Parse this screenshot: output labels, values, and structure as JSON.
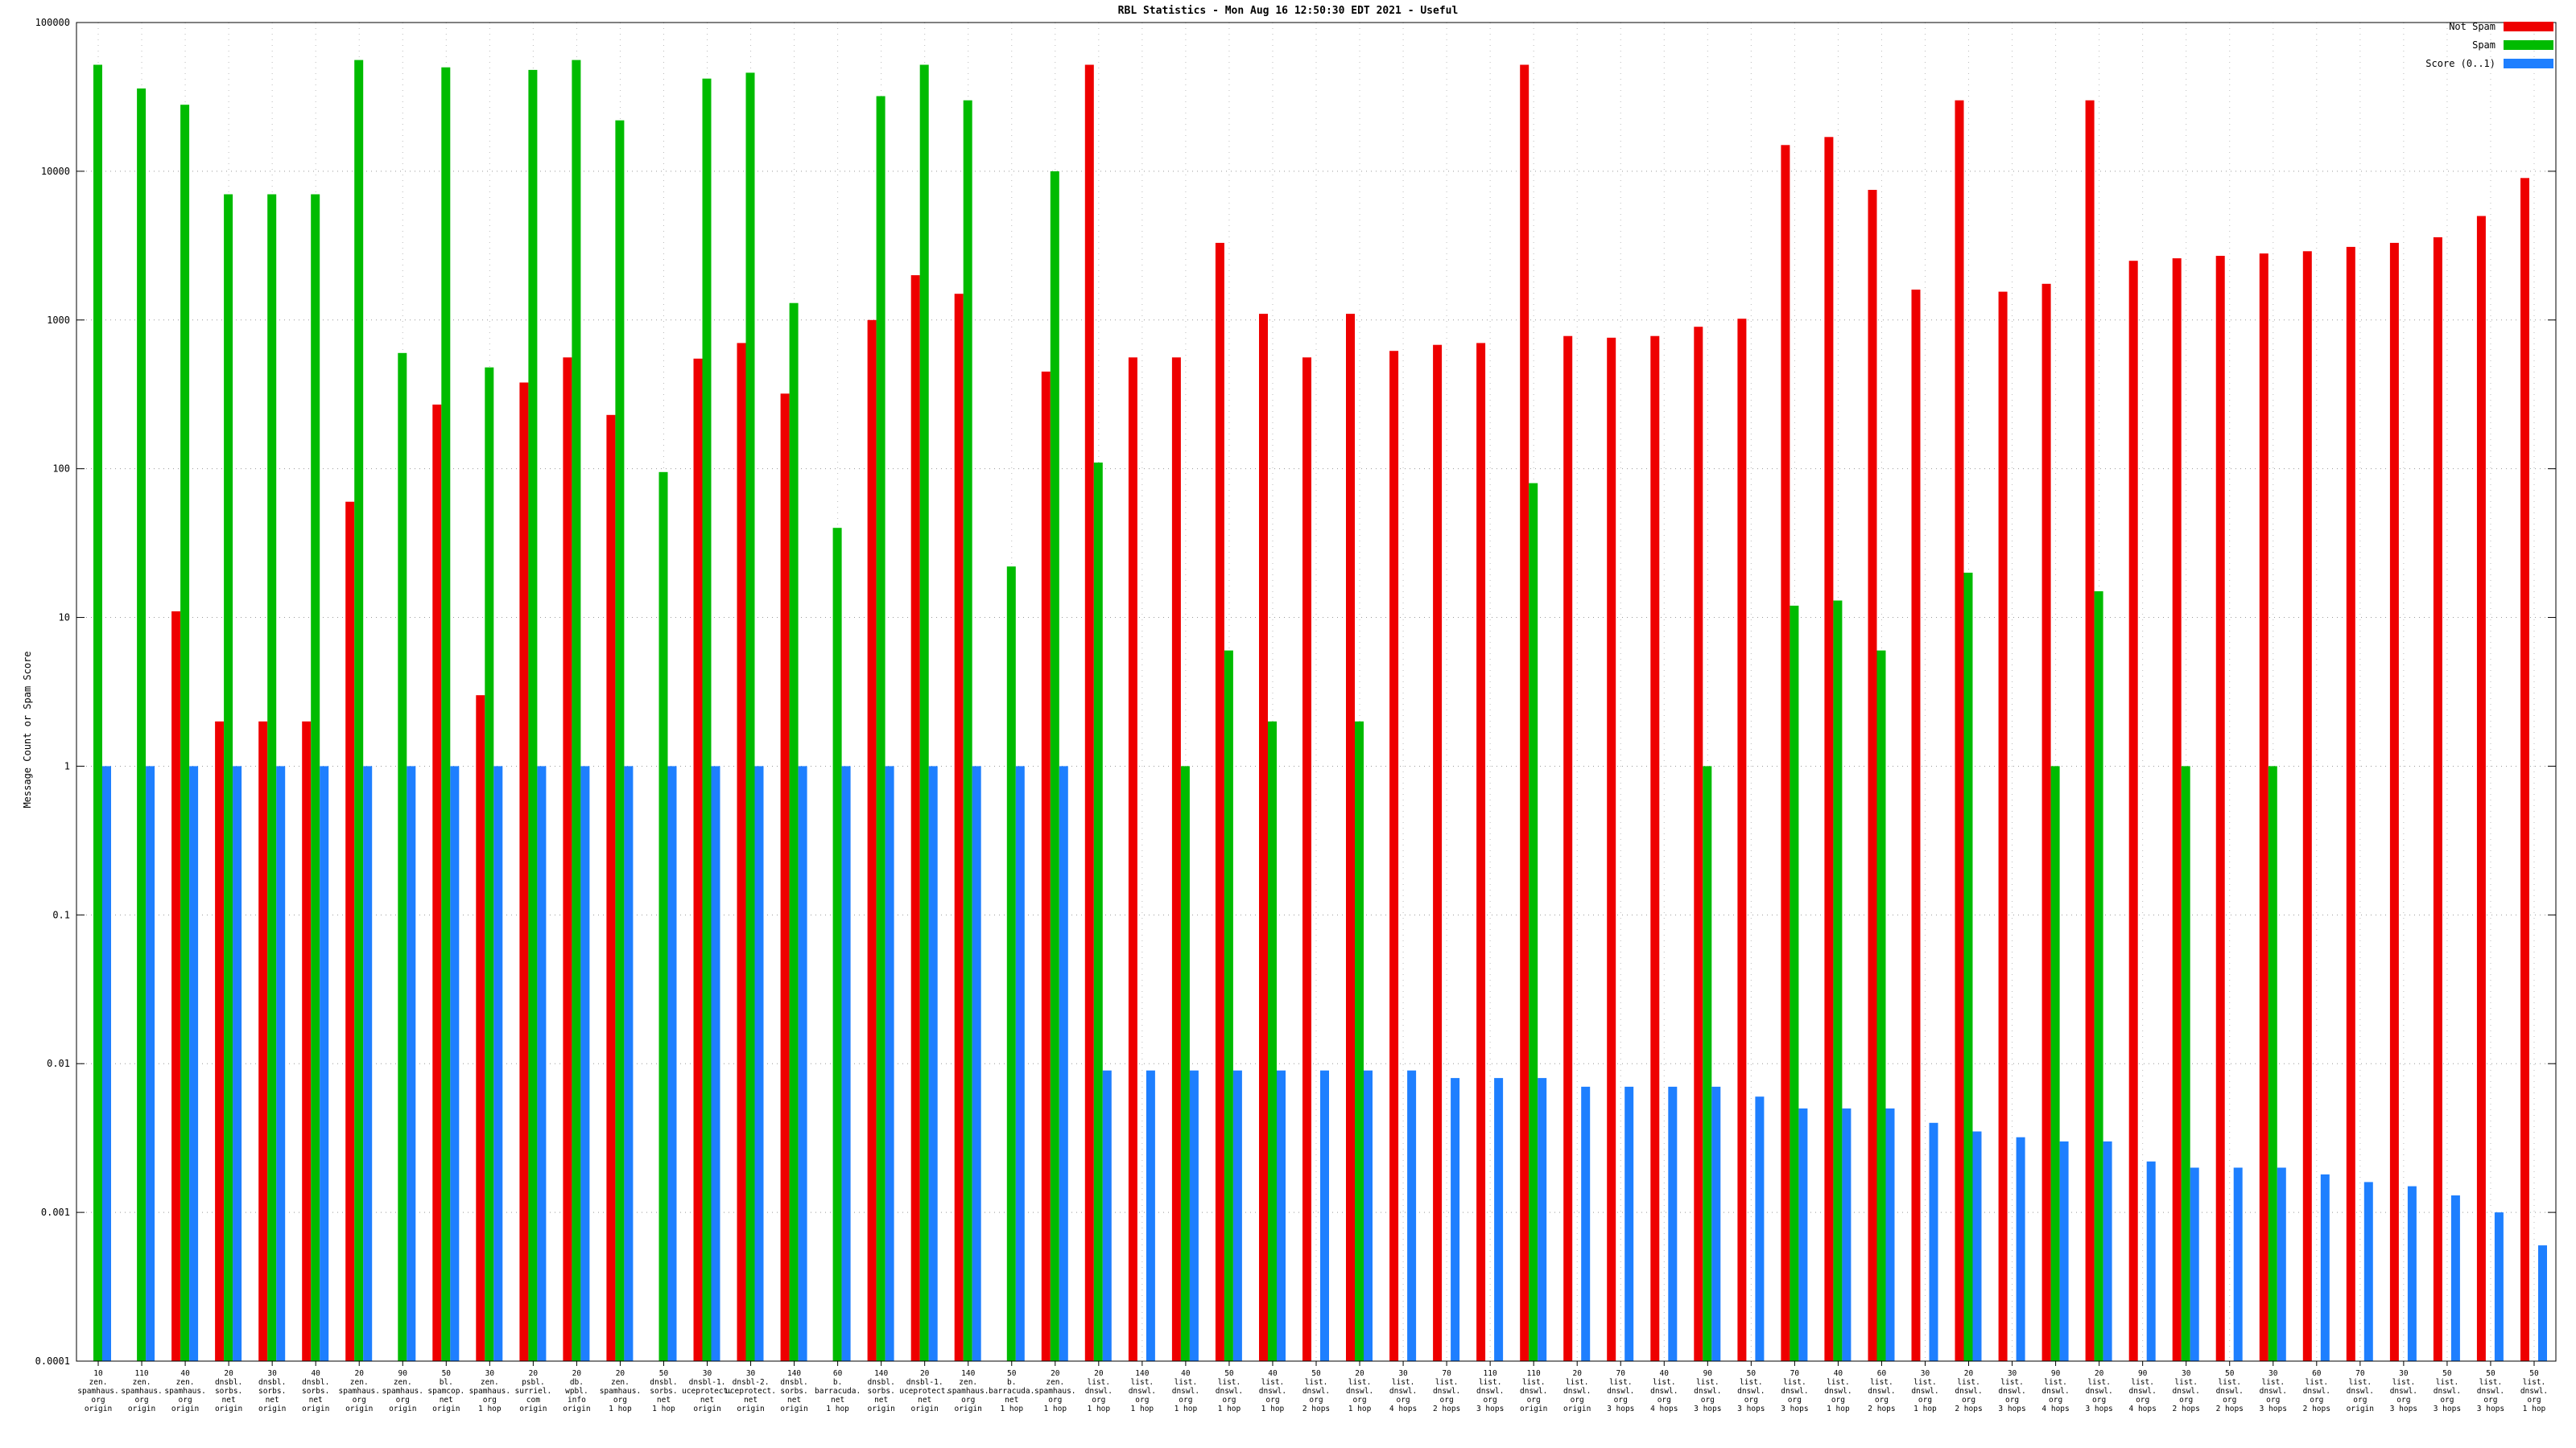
{
  "chart_data": {
    "type": "bar",
    "title": "RBL Statistics - Mon Aug 16 12:50:30 EDT 2021 - Useful",
    "ylabel": "Message Count or Spam Score",
    "xlabel": "",
    "yscale": "log",
    "ylim": [
      0.0001,
      100000
    ],
    "y_ticks": [
      "100000",
      "10000",
      "1000",
      "100",
      "10",
      "1",
      "0.1",
      "0.01",
      "0.001",
      "0.0001"
    ],
    "grid": true,
    "legend_position": "top-right",
    "series": [
      {
        "name": "Not Spam",
        "color": "#ee0000",
        "values": [
          null,
          null,
          11,
          2,
          2,
          2,
          60,
          null,
          270,
          3,
          380,
          560,
          230,
          null,
          550,
          700,
          320,
          null,
          1000,
          2000,
          1500,
          null,
          450,
          52000,
          560,
          560,
          3300,
          1100,
          560,
          1100,
          620,
          680,
          700,
          52000,
          780,
          760,
          780,
          900,
          1020,
          15000,
          17000,
          7500,
          1600,
          30000,
          1550,
          1750,
          30000,
          2500,
          2600,
          2700,
          2800,
          2900,
          3100,
          3300,
          3600,
          5000,
          9000
        ]
      },
      {
        "name": "Spam",
        "color": "#00bb00",
        "values": [
          52000,
          36000,
          28000,
          7000,
          7000,
          7000,
          56000,
          600,
          50000,
          480,
          48000,
          56000,
          22000,
          95,
          42000,
          46000,
          1300,
          40,
          32000,
          52000,
          30000,
          22,
          10000,
          110,
          null,
          1,
          6,
          2,
          null,
          2,
          null,
          null,
          null,
          80,
          null,
          null,
          null,
          1,
          null,
          12,
          13,
          6,
          null,
          20,
          null,
          1,
          15,
          null,
          1,
          null,
          1,
          null,
          null,
          null,
          null,
          null,
          null
        ]
      },
      {
        "name": "Score (0..1)",
        "color": "#1e7fff",
        "values": [
          1,
          1,
          1,
          1,
          1,
          1,
          1,
          1,
          1,
          1,
          1,
          1,
          1,
          1,
          1,
          1,
          1,
          1,
          1,
          1,
          1,
          1,
          1,
          0.009,
          0.009,
          0.009,
          0.009,
          0.009,
          0.009,
          0.009,
          0.009,
          0.008,
          0.008,
          0.008,
          0.007,
          0.007,
          0.007,
          0.007,
          0.006,
          0.005,
          0.005,
          0.005,
          0.004,
          0.0035,
          0.0032,
          0.003,
          0.003,
          0.0022,
          0.002,
          0.002,
          0.002,
          0.0018,
          0.0016,
          0.0015,
          0.0013,
          0.001,
          0.0006
        ]
      }
    ],
    "categories": [
      {
        "lines": [
          "10",
          "zen.",
          "spamhaus.",
          "org",
          "origin"
        ]
      },
      {
        "lines": [
          "110",
          "zen.",
          "spamhaus.",
          "org",
          "origin"
        ]
      },
      {
        "lines": [
          "40",
          "zen.",
          "spamhaus.",
          "org",
          "origin"
        ]
      },
      {
        "lines": [
          "20",
          "dnsbl.",
          "sorbs.",
          "net",
          "origin"
        ]
      },
      {
        "lines": [
          "30",
          "dnsbl.",
          "sorbs.",
          "net",
          "origin"
        ]
      },
      {
        "lines": [
          "40",
          "dnsbl.",
          "sorbs.",
          "net",
          "origin"
        ]
      },
      {
        "lines": [
          "20",
          "zen.",
          "spamhaus.",
          "org",
          "origin"
        ]
      },
      {
        "lines": [
          "90",
          "zen.",
          "spamhaus.",
          "org",
          "origin"
        ]
      },
      {
        "lines": [
          "50",
          "bl.",
          "spamcop.",
          "net",
          "origin"
        ]
      },
      {
        "lines": [
          "30",
          "zen.",
          "spamhaus.",
          "org",
          "1 hop"
        ]
      },
      {
        "lines": [
          "20",
          "psbl.",
          "surriel.",
          "com",
          "origin"
        ]
      },
      {
        "lines": [
          "20",
          "db.",
          "wpbl.",
          "info",
          "origin"
        ]
      },
      {
        "lines": [
          "20",
          "zen.",
          "spamhaus.",
          "org",
          "1 hop"
        ]
      },
      {
        "lines": [
          "50",
          "dnsbl.",
          "sorbs.",
          "net",
          "1 hop"
        ]
      },
      {
        "lines": [
          "30",
          "dnsbl-1.",
          "uceprotect.",
          "net",
          "origin"
        ]
      },
      {
        "lines": [
          "30",
          "dnsbl-2.",
          "uceprotect.",
          "net",
          "origin"
        ]
      },
      {
        "lines": [
          "140",
          "dnsbl.",
          "sorbs.",
          "net",
          "origin"
        ]
      },
      {
        "lines": [
          "60",
          "b.",
          "barracuda.",
          "net",
          "1 hop"
        ]
      },
      {
        "lines": [
          "140",
          "dnsbl.",
          "sorbs.",
          "net",
          "origin"
        ]
      },
      {
        "lines": [
          "20",
          "dnsbl-1.",
          "uceprotect.",
          "net",
          "origin"
        ]
      },
      {
        "lines": [
          "140",
          "zen.",
          "spamhaus.",
          "org",
          "origin"
        ]
      },
      {
        "lines": [
          "50",
          "b.",
          "barracuda.",
          "net",
          "1 hop"
        ]
      },
      {
        "lines": [
          "20",
          "zen.",
          "spamhaus.",
          "org",
          "1 hop"
        ]
      },
      {
        "lines": [
          "20",
          "list.",
          "dnswl.",
          "org",
          "1 hop"
        ]
      },
      {
        "lines": [
          "140",
          "list.",
          "dnswl.",
          "org",
          "1 hop"
        ]
      },
      {
        "lines": [
          "40",
          "list.",
          "dnswl.",
          "org",
          "1 hop"
        ]
      },
      {
        "lines": [
          "50",
          "list.",
          "dnswl.",
          "org",
          "1 hop"
        ]
      },
      {
        "lines": [
          "40",
          "list.",
          "dnswl.",
          "org",
          "1 hop"
        ]
      },
      {
        "lines": [
          "50",
          "list.",
          "dnswl.",
          "org",
          "2 hops"
        ]
      },
      {
        "lines": [
          "20",
          "list.",
          "dnswl.",
          "org",
          "1 hop"
        ]
      },
      {
        "lines": [
          "30",
          "list.",
          "dnswl.",
          "org",
          "4 hops"
        ]
      },
      {
        "lines": [
          "70",
          "list.",
          "dnswl.",
          "org",
          "2 hops"
        ]
      },
      {
        "lines": [
          "110",
          "list.",
          "dnswl.",
          "org",
          "3 hops"
        ]
      },
      {
        "lines": [
          "110",
          "list.",
          "dnswl.",
          "org",
          "origin"
        ]
      },
      {
        "lines": [
          "20",
          "list.",
          "dnswl.",
          "org",
          "origin"
        ]
      },
      {
        "lines": [
          "70",
          "list.",
          "dnswl.",
          "org",
          "3 hops"
        ]
      },
      {
        "lines": [
          "40",
          "list.",
          "dnswl.",
          "org",
          "4 hops"
        ]
      },
      {
        "lines": [
          "90",
          "list.",
          "dnswl.",
          "org",
          "3 hops"
        ]
      },
      {
        "lines": [
          "50",
          "list.",
          "dnswl.",
          "org",
          "3 hops"
        ]
      },
      {
        "lines": [
          "70",
          "list.",
          "dnswl.",
          "org",
          "3 hops"
        ]
      },
      {
        "lines": [
          "40",
          "list.",
          "dnswl.",
          "org",
          "1 hop"
        ]
      },
      {
        "lines": [
          "60",
          "list.",
          "dnswl.",
          "org",
          "2 hops"
        ]
      },
      {
        "lines": [
          "30",
          "list.",
          "dnswl.",
          "org",
          "1 hop"
        ]
      },
      {
        "lines": [
          "20",
          "list.",
          "dnswl.",
          "org",
          "2 hops"
        ]
      },
      {
        "lines": [
          "30",
          "list.",
          "dnswl.",
          "org",
          "3 hops"
        ]
      },
      {
        "lines": [
          "90",
          "list.",
          "dnswl.",
          "org",
          "4 hops"
        ]
      },
      {
        "lines": [
          "20",
          "list.",
          "dnswl.",
          "org",
          "3 hops"
        ]
      },
      {
        "lines": [
          "90",
          "list.",
          "dnswl.",
          "org",
          "4 hops"
        ]
      },
      {
        "lines": [
          "30",
          "list.",
          "dnswl.",
          "org",
          "2 hops"
        ]
      },
      {
        "lines": [
          "50",
          "list.",
          "dnswl.",
          "org",
          "2 hops"
        ]
      },
      {
        "lines": [
          "30",
          "list.",
          "dnswl.",
          "org",
          "3 hops"
        ]
      },
      {
        "lines": [
          "60",
          "list.",
          "dnswl.",
          "org",
          "2 hops"
        ]
      },
      {
        "lines": [
          "70",
          "list.",
          "dnswl.",
          "org",
          "origin"
        ]
      },
      {
        "lines": [
          "30",
          "list.",
          "dnswl.",
          "org",
          "3 hops"
        ]
      },
      {
        "lines": [
          "50",
          "list.",
          "dnswl.",
          "org",
          "3 hops"
        ]
      },
      {
        "lines": [
          "50",
          "list.",
          "dnswl.",
          "org",
          "3 hops"
        ]
      },
      {
        "lines": [
          "50",
          "list.",
          "dnswl.",
          "org",
          "1 hop"
        ]
      }
    ]
  }
}
